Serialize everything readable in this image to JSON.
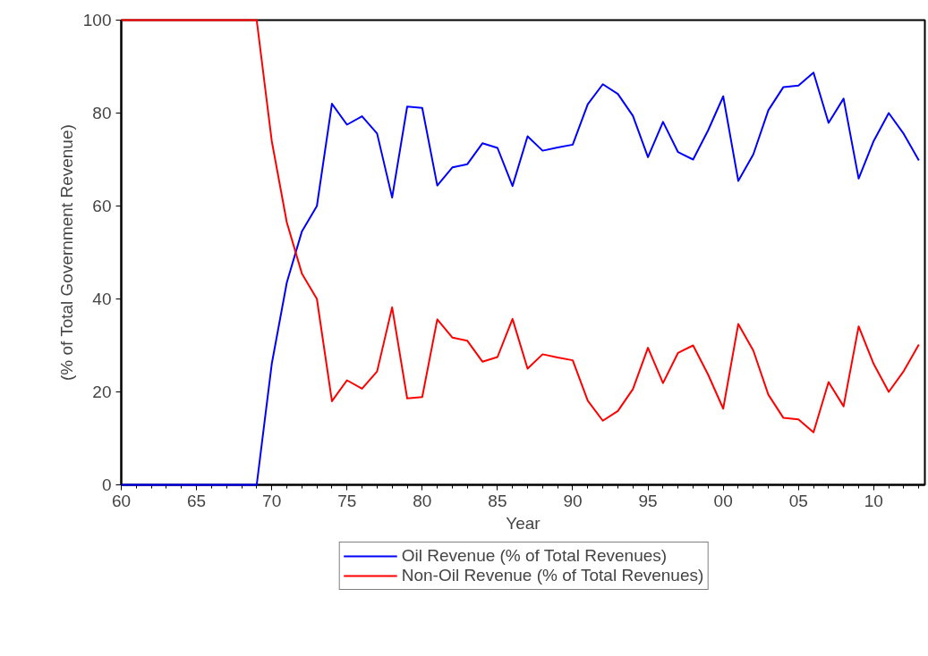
{
  "chart_data": {
    "type": "line",
    "xlabel": "Year",
    "ylabel": "(% of Total Government Revenue)",
    "x": [
      1960,
      1961,
      1962,
      1963,
      1964,
      1965,
      1966,
      1967,
      1968,
      1969,
      1970,
      1971,
      1972,
      1973,
      1974,
      1975,
      1976,
      1977,
      1978,
      1979,
      1980,
      1981,
      1982,
      1983,
      1984,
      1985,
      1986,
      1987,
      1988,
      1989,
      1990,
      1991,
      1992,
      1993,
      1994,
      1995,
      1996,
      1997,
      1998,
      1999,
      2000,
      2001,
      2002,
      2003,
      2004,
      2005,
      2006,
      2007,
      2008,
      2009,
      2010,
      2011,
      2012,
      2013
    ],
    "series": [
      {
        "name": "Oil Revenue (% of Total Revenues)",
        "color": "#0000ff",
        "values": [
          0,
          0,
          0,
          0,
          0,
          0,
          0,
          0,
          0,
          0,
          26,
          43.5,
          54.5,
          60,
          82,
          77.5,
          79.3,
          75.6,
          61.8,
          81.4,
          81.1,
          64.4,
          68.3,
          69,
          73.5,
          72.5,
          64.3,
          75,
          71.9,
          72.6,
          73.2,
          81.9,
          86.2,
          84.1,
          79.4,
          70.5,
          78.1,
          71.6,
          70,
          76.3,
          83.6,
          65.4,
          71.1,
          80.6,
          85.6,
          85.9,
          88.7,
          77.9,
          83.1,
          65.9,
          74,
          80,
          75.5,
          69.8
        ]
      },
      {
        "name": "Non-Oil Revenue (% of Total Revenues)",
        "color": "#ff0000",
        "values": [
          100,
          100,
          100,
          100,
          100,
          100,
          100,
          100,
          100,
          100,
          74,
          56.5,
          45.5,
          40,
          18,
          22.5,
          20.7,
          24.4,
          38.2,
          18.6,
          18.9,
          35.6,
          31.7,
          31,
          26.5,
          27.5,
          35.7,
          25,
          28.1,
          27.4,
          26.8,
          18.1,
          13.8,
          15.9,
          20.6,
          29.5,
          21.9,
          28.4,
          30,
          23.7,
          16.4,
          34.6,
          28.9,
          19.4,
          14.4,
          14.1,
          11.3,
          22.1,
          16.9,
          34.1,
          26,
          20,
          24.5,
          30.2
        ]
      }
    ],
    "xlim": [
      1960,
      2013.4
    ],
    "ylim": [
      0,
      100
    ],
    "xticks": [
      {
        "value": 1960,
        "label": "60"
      },
      {
        "value": 1965,
        "label": "65"
      },
      {
        "value": 1970,
        "label": "70"
      },
      {
        "value": 1975,
        "label": "75"
      },
      {
        "value": 1980,
        "label": "80"
      },
      {
        "value": 1985,
        "label": "85"
      },
      {
        "value": 1990,
        "label": "90"
      },
      {
        "value": 1995,
        "label": "95"
      },
      {
        "value": 2000,
        "label": "00"
      },
      {
        "value": 2005,
        "label": "05"
      },
      {
        "value": 2010,
        "label": "10"
      }
    ],
    "yticks": [
      0,
      20,
      40,
      60,
      80,
      100
    ],
    "grid": false,
    "legend": "bottom",
    "marker": "none",
    "line_style": "solid"
  }
}
